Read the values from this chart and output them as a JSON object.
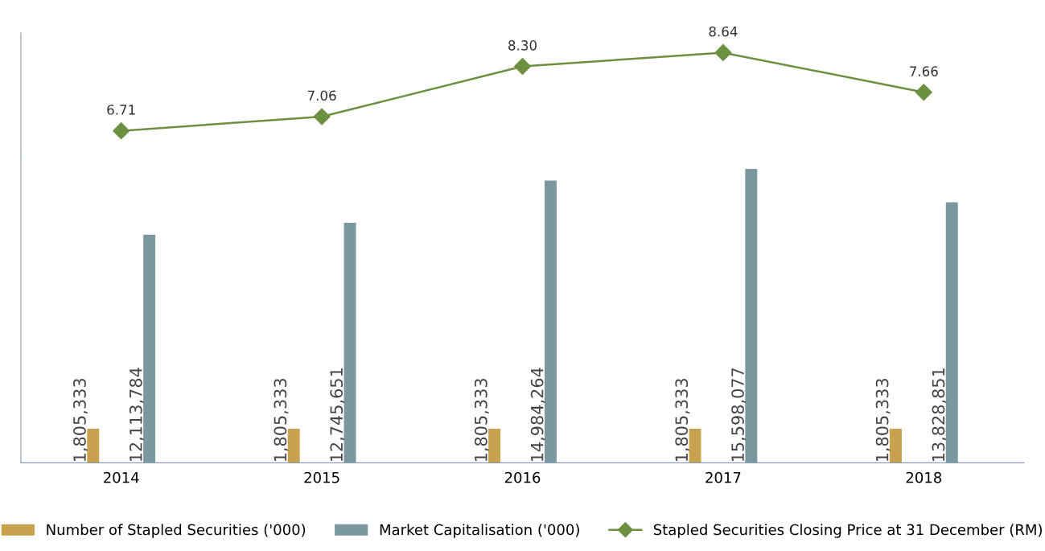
{
  "chart_data": [
    {
      "type": "bar",
      "categories": [
        "2014",
        "2015",
        "2016",
        "2017",
        "2018"
      ],
      "series": [
        {
          "name": "Number of Stapled Securities ('000)",
          "color": "#c9a24f",
          "values": [
            1805333,
            1805333,
            1805333,
            1805333,
            1805333
          ],
          "value_labels": [
            "1,805,333",
            "1,805,333",
            "1,805,333",
            "1,805,333",
            "1,805,333"
          ]
        },
        {
          "name": "Market Capitalisation ('000)",
          "color": "#7b98a0",
          "values": [
            12113784,
            12745651,
            14984264,
            15598077,
            13828851
          ],
          "value_labels": [
            "12,113,784",
            "12,745,651",
            "14,984,264",
            "15,598,077",
            "13,828,851"
          ]
        }
      ],
      "tick_labels": "x",
      "legend": "bottom"
    },
    {
      "type": "line",
      "categories": [
        "2014",
        "2015",
        "2016",
        "2017",
        "2018"
      ],
      "series": [
        {
          "name": "Stapled Securities Closing Price at 31 December (RM)",
          "color": "#6b9140",
          "values": [
            6.71,
            7.06,
            8.3,
            8.64,
            7.66
          ],
          "value_labels": [
            "6.71",
            "7.06",
            "8.30",
            "8.64",
            "7.66"
          ]
        }
      ],
      "marker": "diamond",
      "tick_labels": false,
      "legend": "bottom"
    }
  ]
}
